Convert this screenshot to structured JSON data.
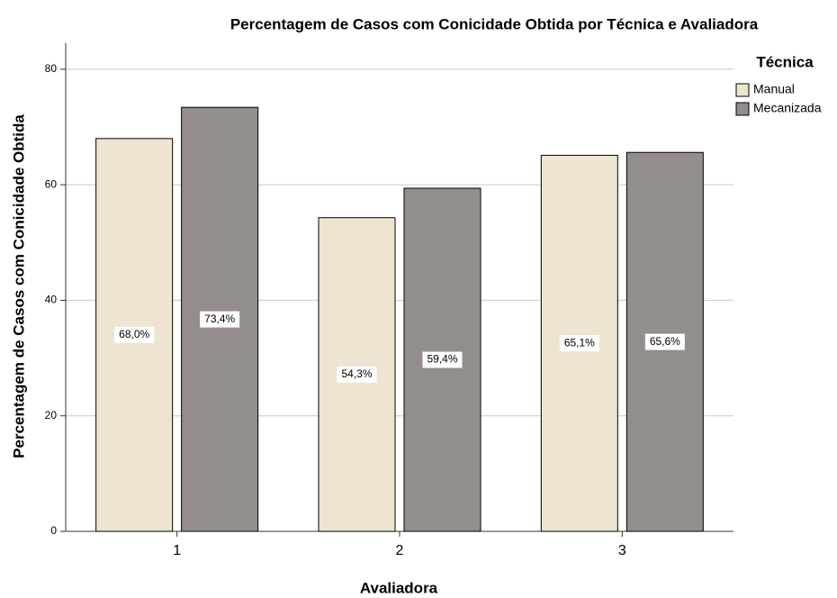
{
  "chart_data": {
    "type": "bar",
    "title": "Percentagem de Casos com Conicidade Obtida por Técnica e Avaliadora",
    "x_label": "Avaliadora",
    "y_label": "Percentagem de Casos com Conicidade Obtida",
    "legend_title": "Técnica",
    "legend_position": "right",
    "categories": [
      "1",
      "2",
      "3"
    ],
    "series": [
      {
        "name": "Manual",
        "color": "#ede5d1",
        "values": [
          68.0,
          54.3,
          65.1
        ],
        "value_labels": [
          "68,0%",
          "54,3%",
          "65,1%"
        ]
      },
      {
        "name": "Mecanizada",
        "color": "#938e8c",
        "values": [
          73.4,
          59.4,
          65.6
        ],
        "value_labels": [
          "73,4%",
          "59,4%",
          "65,6%"
        ]
      }
    ],
    "ylim": [
      0,
      84.5
    ],
    "yticks": [
      0,
      20,
      40,
      60,
      80
    ],
    "grid": true
  }
}
